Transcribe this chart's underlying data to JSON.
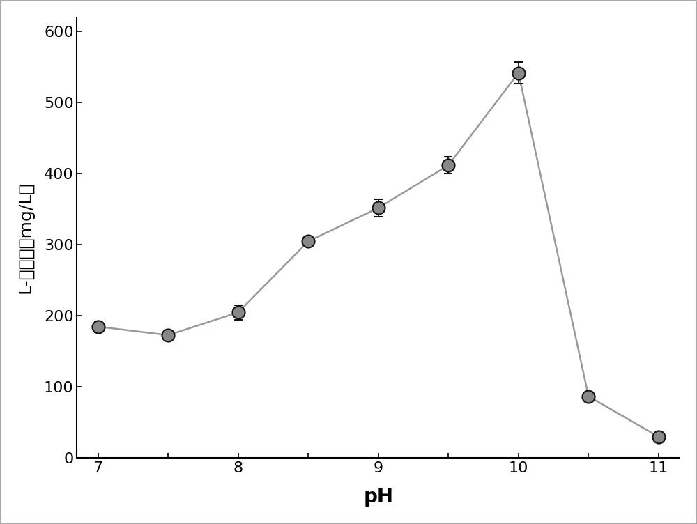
{
  "x": [
    7.0,
    7.5,
    8.0,
    8.5,
    9.0,
    9.5,
    10.0,
    10.5,
    11.0
  ],
  "y": [
    185,
    173,
    205,
    305,
    352,
    412,
    542,
    87,
    30
  ],
  "yerr": [
    8,
    5,
    10,
    5,
    12,
    12,
    15,
    5,
    4
  ],
  "xlabel": "pH",
  "ylabel": "L-塔格糖（mg/L）",
  "xlim": [
    6.85,
    11.15
  ],
  "ylim": [
    0,
    620
  ],
  "yticks": [
    0,
    100,
    200,
    300,
    400,
    500,
    600
  ],
  "xticks": [
    7,
    7.5,
    8,
    8.5,
    9,
    9.5,
    10,
    10.5,
    11
  ],
  "xtick_labels": [
    "7",
    "",
    "8",
    "",
    "9",
    "",
    "10",
    "",
    "11"
  ],
  "line_color": "#999999",
  "marker_face_color": "#888888",
  "marker_edge_color": "#111111",
  "marker_size": 13,
  "line_width": 1.8,
  "background_color": "#ffffff",
  "xlabel_fontsize": 20,
  "ylabel_fontsize": 18,
  "tick_fontsize": 16,
  "border_color": "#cccccc"
}
